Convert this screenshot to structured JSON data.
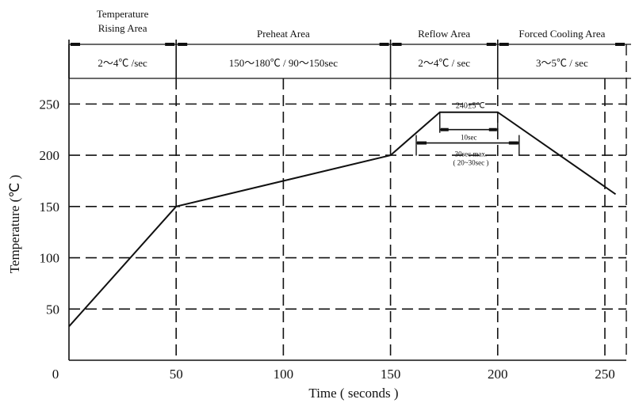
{
  "chart_data": {
    "type": "line",
    "xlabel": "Time ( seconds )",
    "ylabel": "Temperature (℃ )",
    "xlim": [
      0,
      260
    ],
    "ylim": [
      0,
      275
    ],
    "x_ticks": [
      "0",
      "50",
      "100",
      "150",
      "200",
      "250"
    ],
    "x_tick_values": [
      0,
      50,
      100,
      150,
      200,
      250
    ],
    "y_ticks": [
      "50",
      "100",
      "150",
      "200",
      "250"
    ],
    "y_tick_values": [
      50,
      100,
      150,
      200,
      250
    ],
    "grid": "dashed",
    "series": [
      {
        "values": [
          {
            "x": 0,
            "y": 33
          },
          {
            "x": 50,
            "y": 150
          },
          {
            "x": 150,
            "y": 200
          },
          {
            "x": 173,
            "y": 242
          },
          {
            "x": 200,
            "y": 242
          },
          {
            "x": 255,
            "y": 162
          }
        ]
      }
    ],
    "zones": [
      {
        "name_lines": [
          "Temperature",
          "Rising Area"
        ],
        "rate": "2～4℃ /sec",
        "x_start": 0,
        "x_end": 50
      },
      {
        "name_lines": [
          "Preheat Area"
        ],
        "rate": "150～180℃ / 90～150sec",
        "x_start": 50,
        "x_end": 150
      },
      {
        "name_lines": [
          "Reflow Area"
        ],
        "rate": "2～4℃ / sec",
        "x_start": 150,
        "x_end": 200
      },
      {
        "name_lines": [
          "Forced Cooling Area"
        ],
        "rate": "3～5℃ / sec",
        "x_start": 200,
        "x_end": 260
      }
    ],
    "annotations": {
      "peak_label": "240±5℃",
      "peak_hold_label": "10sec",
      "reflow_time_line1": "30sec max.",
      "reflow_time_line2": "( 20~30sec )",
      "peak_hold_x": [
        173,
        200
      ],
      "peak_hold_y": 225,
      "reflow_span_x": [
        162,
        210
      ],
      "reflow_span_y": 212
    }
  }
}
